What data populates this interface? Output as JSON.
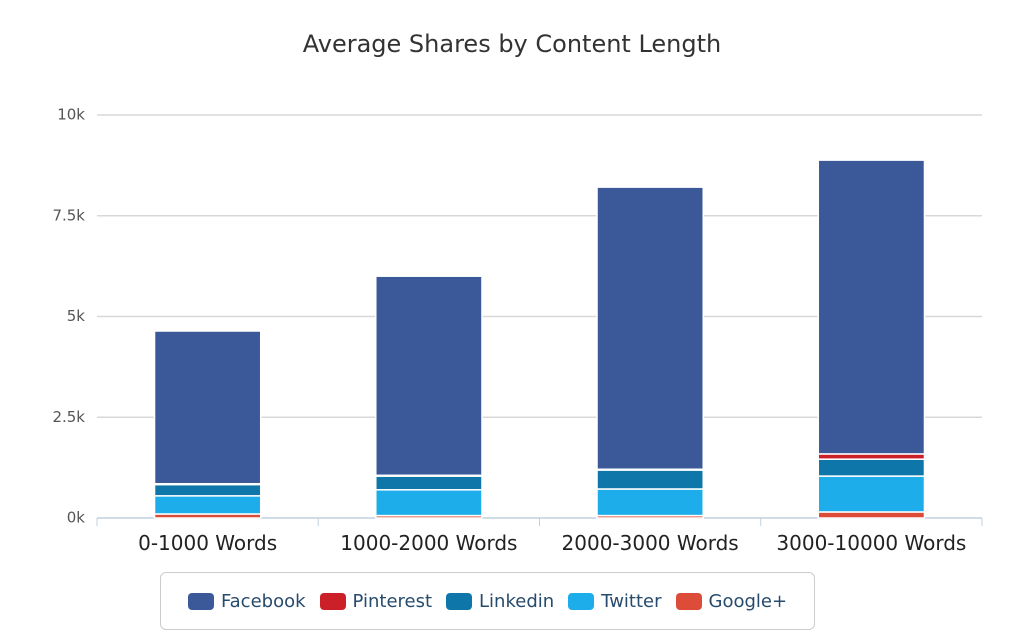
{
  "chart_data": {
    "type": "bar",
    "stacked": true,
    "title": "Average Shares by Content Length",
    "categories": [
      "0-1000 Words",
      "1000-2000 Words",
      "2000-3000 Words",
      "3000-10000 Words"
    ],
    "series": [
      {
        "name": "Facebook",
        "color": "#3b5998",
        "values": [
          3790,
          4940,
          7000,
          7290
        ]
      },
      {
        "name": "Pinterest",
        "color": "#cb2027",
        "values": [
          20,
          20,
          20,
          130
        ]
      },
      {
        "name": "Linkedin",
        "color": "#0e76a8",
        "values": [
          280,
          340,
          470,
          420
        ]
      },
      {
        "name": "Twitter",
        "color": "#1dadeb",
        "values": [
          450,
          640,
          660,
          890
        ]
      },
      {
        "name": "Google+",
        "color": "#dd4b39",
        "values": [
          100,
          60,
          60,
          150
        ]
      }
    ],
    "ylim": [
      0,
      10000
    ],
    "yticks": [
      {
        "value": 0,
        "label": "0k"
      },
      {
        "value": 2500,
        "label": "2.5k"
      },
      {
        "value": 5000,
        "label": "5k"
      },
      {
        "value": 7500,
        "label": "7.5k"
      },
      {
        "value": 10000,
        "label": "10k"
      }
    ],
    "grid": true
  }
}
